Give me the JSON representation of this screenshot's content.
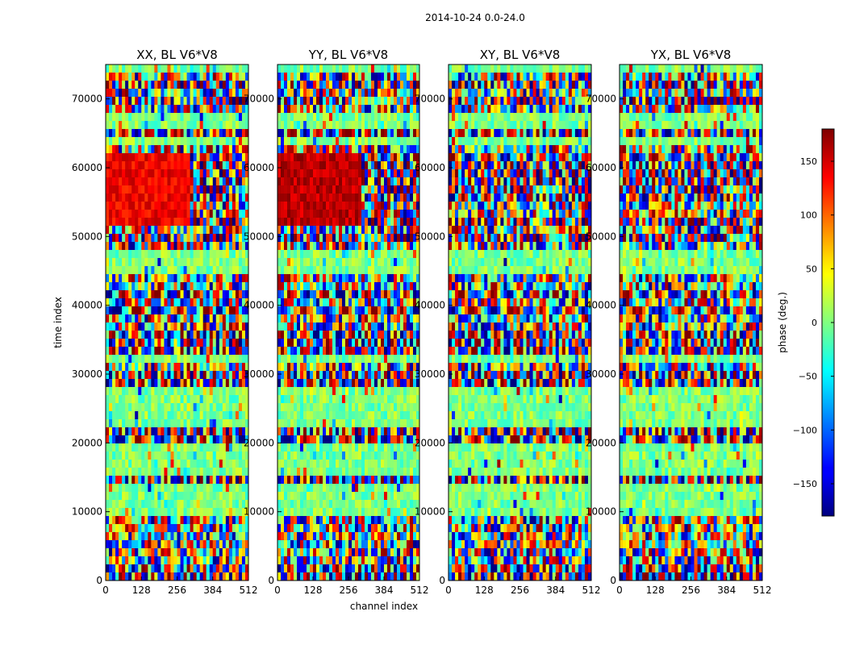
{
  "figure_title": "2014-10-24 0.0-24.0",
  "chart_data": {
    "type": "heatmap",
    "title": "2014-10-24 0.0-24.0",
    "xlabel": "channel index",
    "ylabel": "time index",
    "xlim": [
      0,
      512
    ],
    "ylim": [
      0,
      75000
    ],
    "xticks": [
      "0",
      "128",
      "256",
      "384",
      "512"
    ],
    "yticks": [
      "0",
      "10000",
      "20000",
      "30000",
      "40000",
      "50000",
      "60000",
      "70000"
    ],
    "panels": [
      {
        "title": "XX, BL V6*V8",
        "red_region_strength": 0.75
      },
      {
        "title": "YY, BL V6*V8",
        "red_region_strength": 1.0
      },
      {
        "title": "XY, BL V6*V8",
        "red_region_strength": 0.0
      },
      {
        "title": "YX, BL V6*V8",
        "red_region_strength": 0.0
      }
    ],
    "colorbar": {
      "label": "phase (deg.)",
      "range": [
        -180,
        180
      ],
      "ticks": [
        "150",
        "100",
        "50",
        "0",
        "−50",
        "−100",
        "−150"
      ],
      "colormap": "jet"
    },
    "colors": {
      "cmap_low": "#00008f",
      "cmap_mid": "#80ff80",
      "cmap_high": "#800000"
    },
    "grid": false,
    "legend": "none"
  }
}
